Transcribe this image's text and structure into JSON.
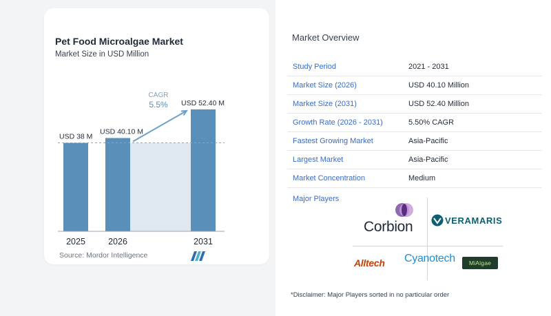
{
  "chart": {
    "title": "Pet Food Microalgae Market",
    "subtitle": "Market Size in USD Million",
    "source": "Source: Mordor Intelligence",
    "cagr_label": "CAGR",
    "cagr_value": "5.5%"
  },
  "chart_data": {
    "type": "bar",
    "categories": [
      "2025",
      "2026",
      "2031"
    ],
    "values": [
      38,
      40.1,
      52.4
    ],
    "data_labels": [
      "USD 38 M",
      "USD 40.10 M",
      "USD 52.40 M"
    ],
    "title": "Pet Food Microalgae Market",
    "subtitle": "Market Size in USD Million",
    "xlabel": "",
    "ylabel": "",
    "colors": {
      "bar": "#5a8fba",
      "shade": "#dfe7ef",
      "arrow": "#6aa0c8"
    }
  },
  "overview": {
    "title": "Market Overview",
    "rows": [
      {
        "label": "Study Period",
        "value": "2021 - 2031"
      },
      {
        "label": "Market Size (2026)",
        "value": "USD 40.10 Million"
      },
      {
        "label": "Market Size (2031)",
        "value": "USD 52.40 Million"
      },
      {
        "label": "Growth Rate (2026 - 2031)",
        "value": "5.50% CAGR"
      },
      {
        "label": "Fastest Growing Market",
        "value": "Asia-Pacific"
      },
      {
        "label": "Largest Market",
        "value": "Asia-Pacific"
      },
      {
        "label": "Market Concentration",
        "value": "Medium"
      }
    ],
    "players_label": "Major Players",
    "players": [
      "Corbion",
      "VERAMARIS",
      "Alltech",
      "Cyanotech",
      "MiAlgae"
    ],
    "disclaimer": "*Disclaimer: Major Players sorted in no particular order"
  }
}
